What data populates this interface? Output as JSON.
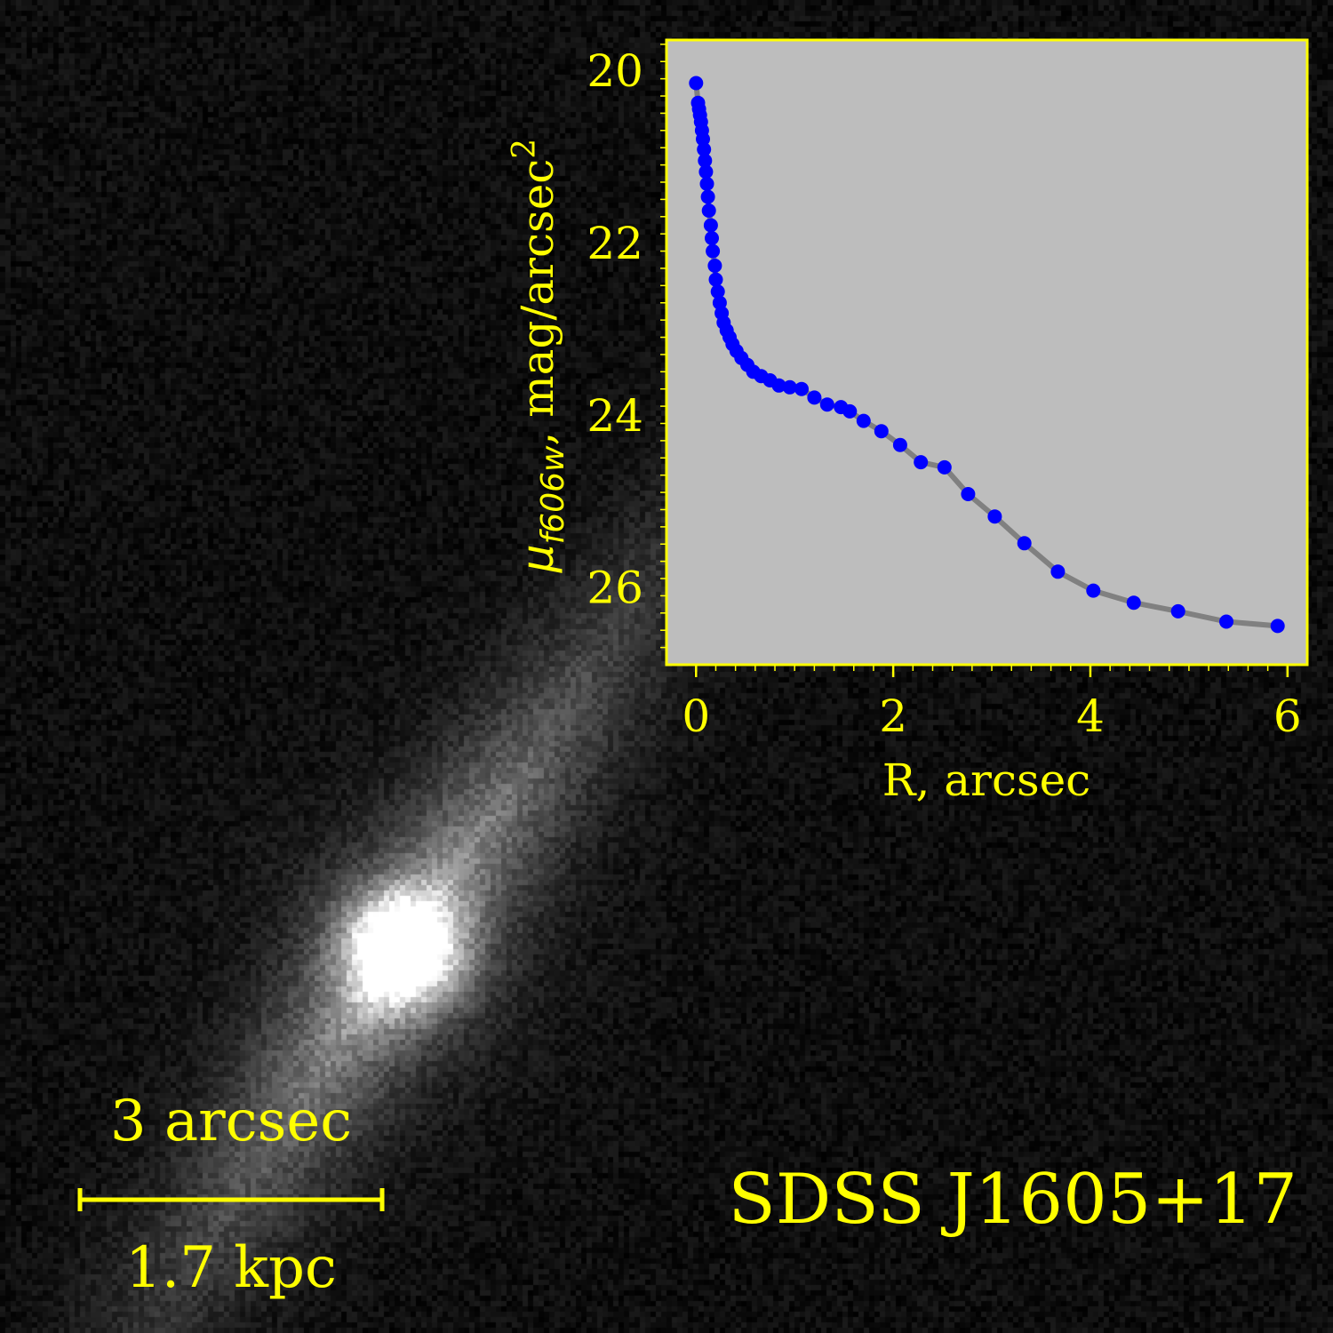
{
  "image": {
    "object_name": "SDSS J1605+17",
    "scale_bar": {
      "top_label": "3 arcsec",
      "bottom_label": "1.7 kpc"
    }
  },
  "colors": {
    "annotation": "#ffff00",
    "marker": "#0000ff",
    "model_line": "#808080",
    "panel_background": "#bdbdbd",
    "sky": "#0d0d0d"
  },
  "chart_data": {
    "type": "scatter",
    "xlabel": "R, arcsec",
    "ylabel_symbol": "μ",
    "ylabel_subscript": "f606w",
    "ylabel_rest": ", mag/arcsec",
    "ylabel_superscript": "2",
    "xlim": [
      -0.3,
      6.2
    ],
    "ylim": [
      26.9,
      19.65
    ],
    "y_inverted": true,
    "xticks": [
      0,
      2,
      4,
      6
    ],
    "yticks": [
      20,
      22,
      24,
      26
    ],
    "grid": false,
    "points": [
      [
        0.0,
        20.15
      ],
      [
        0.02,
        20.38
      ],
      [
        0.03,
        20.45
      ],
      [
        0.04,
        20.52
      ],
      [
        0.05,
        20.6
      ],
      [
        0.06,
        20.7
      ],
      [
        0.07,
        20.8
      ],
      [
        0.08,
        20.92
      ],
      [
        0.09,
        21.05
      ],
      [
        0.1,
        21.18
      ],
      [
        0.11,
        21.32
      ],
      [
        0.12,
        21.47
      ],
      [
        0.13,
        21.63
      ],
      [
        0.15,
        21.8
      ],
      [
        0.16,
        21.95
      ],
      [
        0.17,
        22.1
      ],
      [
        0.19,
        22.27
      ],
      [
        0.2,
        22.43
      ],
      [
        0.22,
        22.57
      ],
      [
        0.24,
        22.7
      ],
      [
        0.26,
        22.82
      ],
      [
        0.28,
        22.93
      ],
      [
        0.31,
        23.02
      ],
      [
        0.34,
        23.1
      ],
      [
        0.37,
        23.18
      ],
      [
        0.41,
        23.26
      ],
      [
        0.46,
        23.34
      ],
      [
        0.52,
        23.42
      ],
      [
        0.58,
        23.5
      ],
      [
        0.66,
        23.55
      ],
      [
        0.75,
        23.6
      ],
      [
        0.84,
        23.66
      ],
      [
        0.95,
        23.68
      ],
      [
        1.07,
        23.7
      ],
      [
        1.2,
        23.8
      ],
      [
        1.33,
        23.88
      ],
      [
        1.47,
        23.91
      ],
      [
        1.56,
        23.96
      ],
      [
        1.7,
        24.07
      ],
      [
        1.88,
        24.19
      ],
      [
        2.07,
        24.35
      ],
      [
        2.28,
        24.55
      ],
      [
        2.52,
        24.61
      ],
      [
        2.76,
        24.92
      ],
      [
        3.03,
        25.18
      ],
      [
        3.33,
        25.49
      ],
      [
        3.67,
        25.82
      ],
      [
        4.03,
        26.04
      ],
      [
        4.44,
        26.18
      ],
      [
        4.89,
        26.28
      ],
      [
        5.38,
        26.4
      ],
      [
        5.9,
        26.45
      ]
    ]
  }
}
